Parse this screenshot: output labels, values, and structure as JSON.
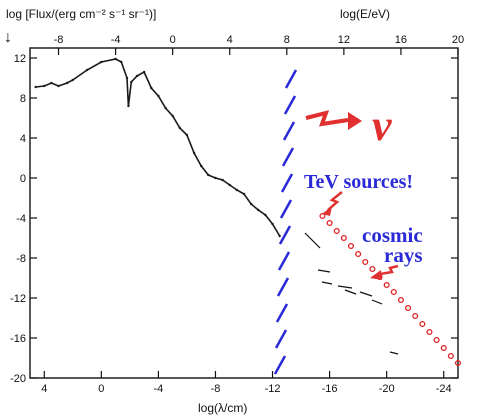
{
  "chart_data": {
    "type": "scatter",
    "ylabel": "log [Flux/(erg cm⁻² s⁻¹ sr⁻¹)]",
    "xlabel_bottom": "log(λ/cm)",
    "xlabel_top": "log(E/eV)",
    "xlim_bottom": [
      5,
      -25
    ],
    "xlim_top": [
      -10,
      20
    ],
    "ylim": [
      -20,
      13
    ],
    "yticks": [
      12,
      8,
      4,
      0,
      -4,
      -8,
      -12,
      -16,
      -20
    ],
    "xticks_bottom": [
      4,
      0,
      -4,
      -8,
      -12,
      -16,
      -20,
      -24
    ],
    "xticks_top": [
      -8,
      -4,
      0,
      4,
      8,
      12,
      16,
      20
    ],
    "grid": false,
    "annotations": {
      "nu_symbol": "ν",
      "tev": "TeV sources!",
      "cosmic_line1": "cosmic",
      "cosmic_line2": "rays"
    },
    "series": [
      {
        "values": [
          [
            4.6,
            9.1
          ],
          [
            4,
            9.2
          ],
          [
            3.5,
            9.5
          ],
          [
            3,
            9.2
          ],
          [
            2.4,
            9.5
          ],
          [
            2,
            9.8
          ],
          [
            1,
            10.8
          ],
          [
            0,
            11.6
          ],
          [
            -1,
            11.9
          ],
          [
            -1.4,
            11.6
          ],
          [
            -1.8,
            10
          ],
          [
            -1.9,
            7.2
          ],
          [
            -2.1,
            9.6
          ],
          [
            -2.5,
            10.2
          ],
          [
            -3,
            10.6
          ],
          [
            -3.5,
            9
          ],
          [
            -4,
            8.2
          ],
          [
            -4.5,
            7
          ],
          [
            -5,
            6.2
          ],
          [
            -5.5,
            5
          ],
          [
            -6,
            4.3
          ],
          [
            -6.5,
            2.5
          ],
          [
            -7,
            1.2
          ],
          [
            -7.5,
            0.3
          ],
          [
            -8,
            0
          ],
          [
            -8.5,
            -0.2
          ],
          [
            -9,
            -0.7
          ],
          [
            -9.5,
            -1.2
          ],
          [
            -10,
            -1.6
          ],
          [
            -10.5,
            -2.6
          ],
          [
            -11,
            -3.2
          ],
          [
            -11.5,
            -3.7
          ],
          [
            -12,
            -4.6
          ],
          [
            -12.5,
            -5.8
          ]
        ]
      },
      {
        "values": [
          [
            -15.5,
            -3.8
          ],
          [
            -16,
            -4.5
          ],
          [
            -16.5,
            -5.3
          ],
          [
            -17,
            -6
          ],
          [
            -17.5,
            -6.8
          ],
          [
            -18,
            -7.6
          ],
          [
            -18.5,
            -8.4
          ],
          [
            -19,
            -9.1
          ],
          [
            -19.5,
            -9.9
          ],
          [
            -20,
            -10.7
          ],
          [
            -20.5,
            -11.4
          ],
          [
            -21,
            -12.2
          ],
          [
            -21.5,
            -13
          ],
          [
            -22,
            -13.8
          ],
          [
            -22.5,
            -14.6
          ],
          [
            -23,
            -15.4
          ],
          [
            -23.5,
            -16.2
          ],
          [
            -24,
            -17
          ],
          [
            -24.5,
            -17.8
          ],
          [
            -25,
            -18.5
          ]
        ]
      }
    ],
    "colors": {
      "data": "#1a1a1a",
      "cosmic": "#e02020",
      "cut": "#2a2ad8",
      "annotation_red": "#e03030",
      "annotation_blue": "#2a2ad8"
    }
  }
}
